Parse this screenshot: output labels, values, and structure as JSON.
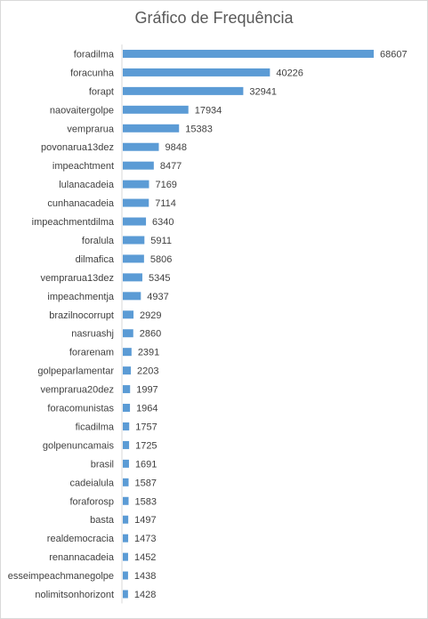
{
  "chart_data": {
    "type": "bar",
    "orientation": "horizontal",
    "title": "Gráfico de Frequência",
    "categories": [
      "foradilma",
      "foracunha",
      "forapt",
      "naovaitergolpe",
      "vemprarua",
      "povonarua13dez",
      "impeachtment",
      "lulanacadeia",
      "cunhanacadeia",
      "impeachmentdilma",
      "foralula",
      "dilmafica",
      "vemprarua13dez",
      "impeachmentja",
      "brazilnocorrupt",
      "nasruashj",
      "forarenam",
      "golpeparlamentar",
      "vemprarua20dez",
      "foracomunistas",
      "ficadilma",
      "golpenuncamais",
      "brasil",
      "cadeialula",
      "foraforosp",
      "basta",
      "realdemocracia",
      "renannacadeia",
      "esseimpeachmanegolpe",
      "nolimitsonhorizont"
    ],
    "values": [
      68607,
      40226,
      32941,
      17934,
      15383,
      9848,
      8477,
      7169,
      7114,
      6340,
      5911,
      5806,
      5345,
      4937,
      2929,
      2860,
      2391,
      2203,
      1997,
      1964,
      1757,
      1725,
      1691,
      1587,
      1583,
      1497,
      1473,
      1452,
      1438,
      1428
    ],
    "data_labels": true,
    "grid": false,
    "legend": "none",
    "bar_color": "#5b9bd5",
    "xlabel": "",
    "ylabel": ""
  }
}
